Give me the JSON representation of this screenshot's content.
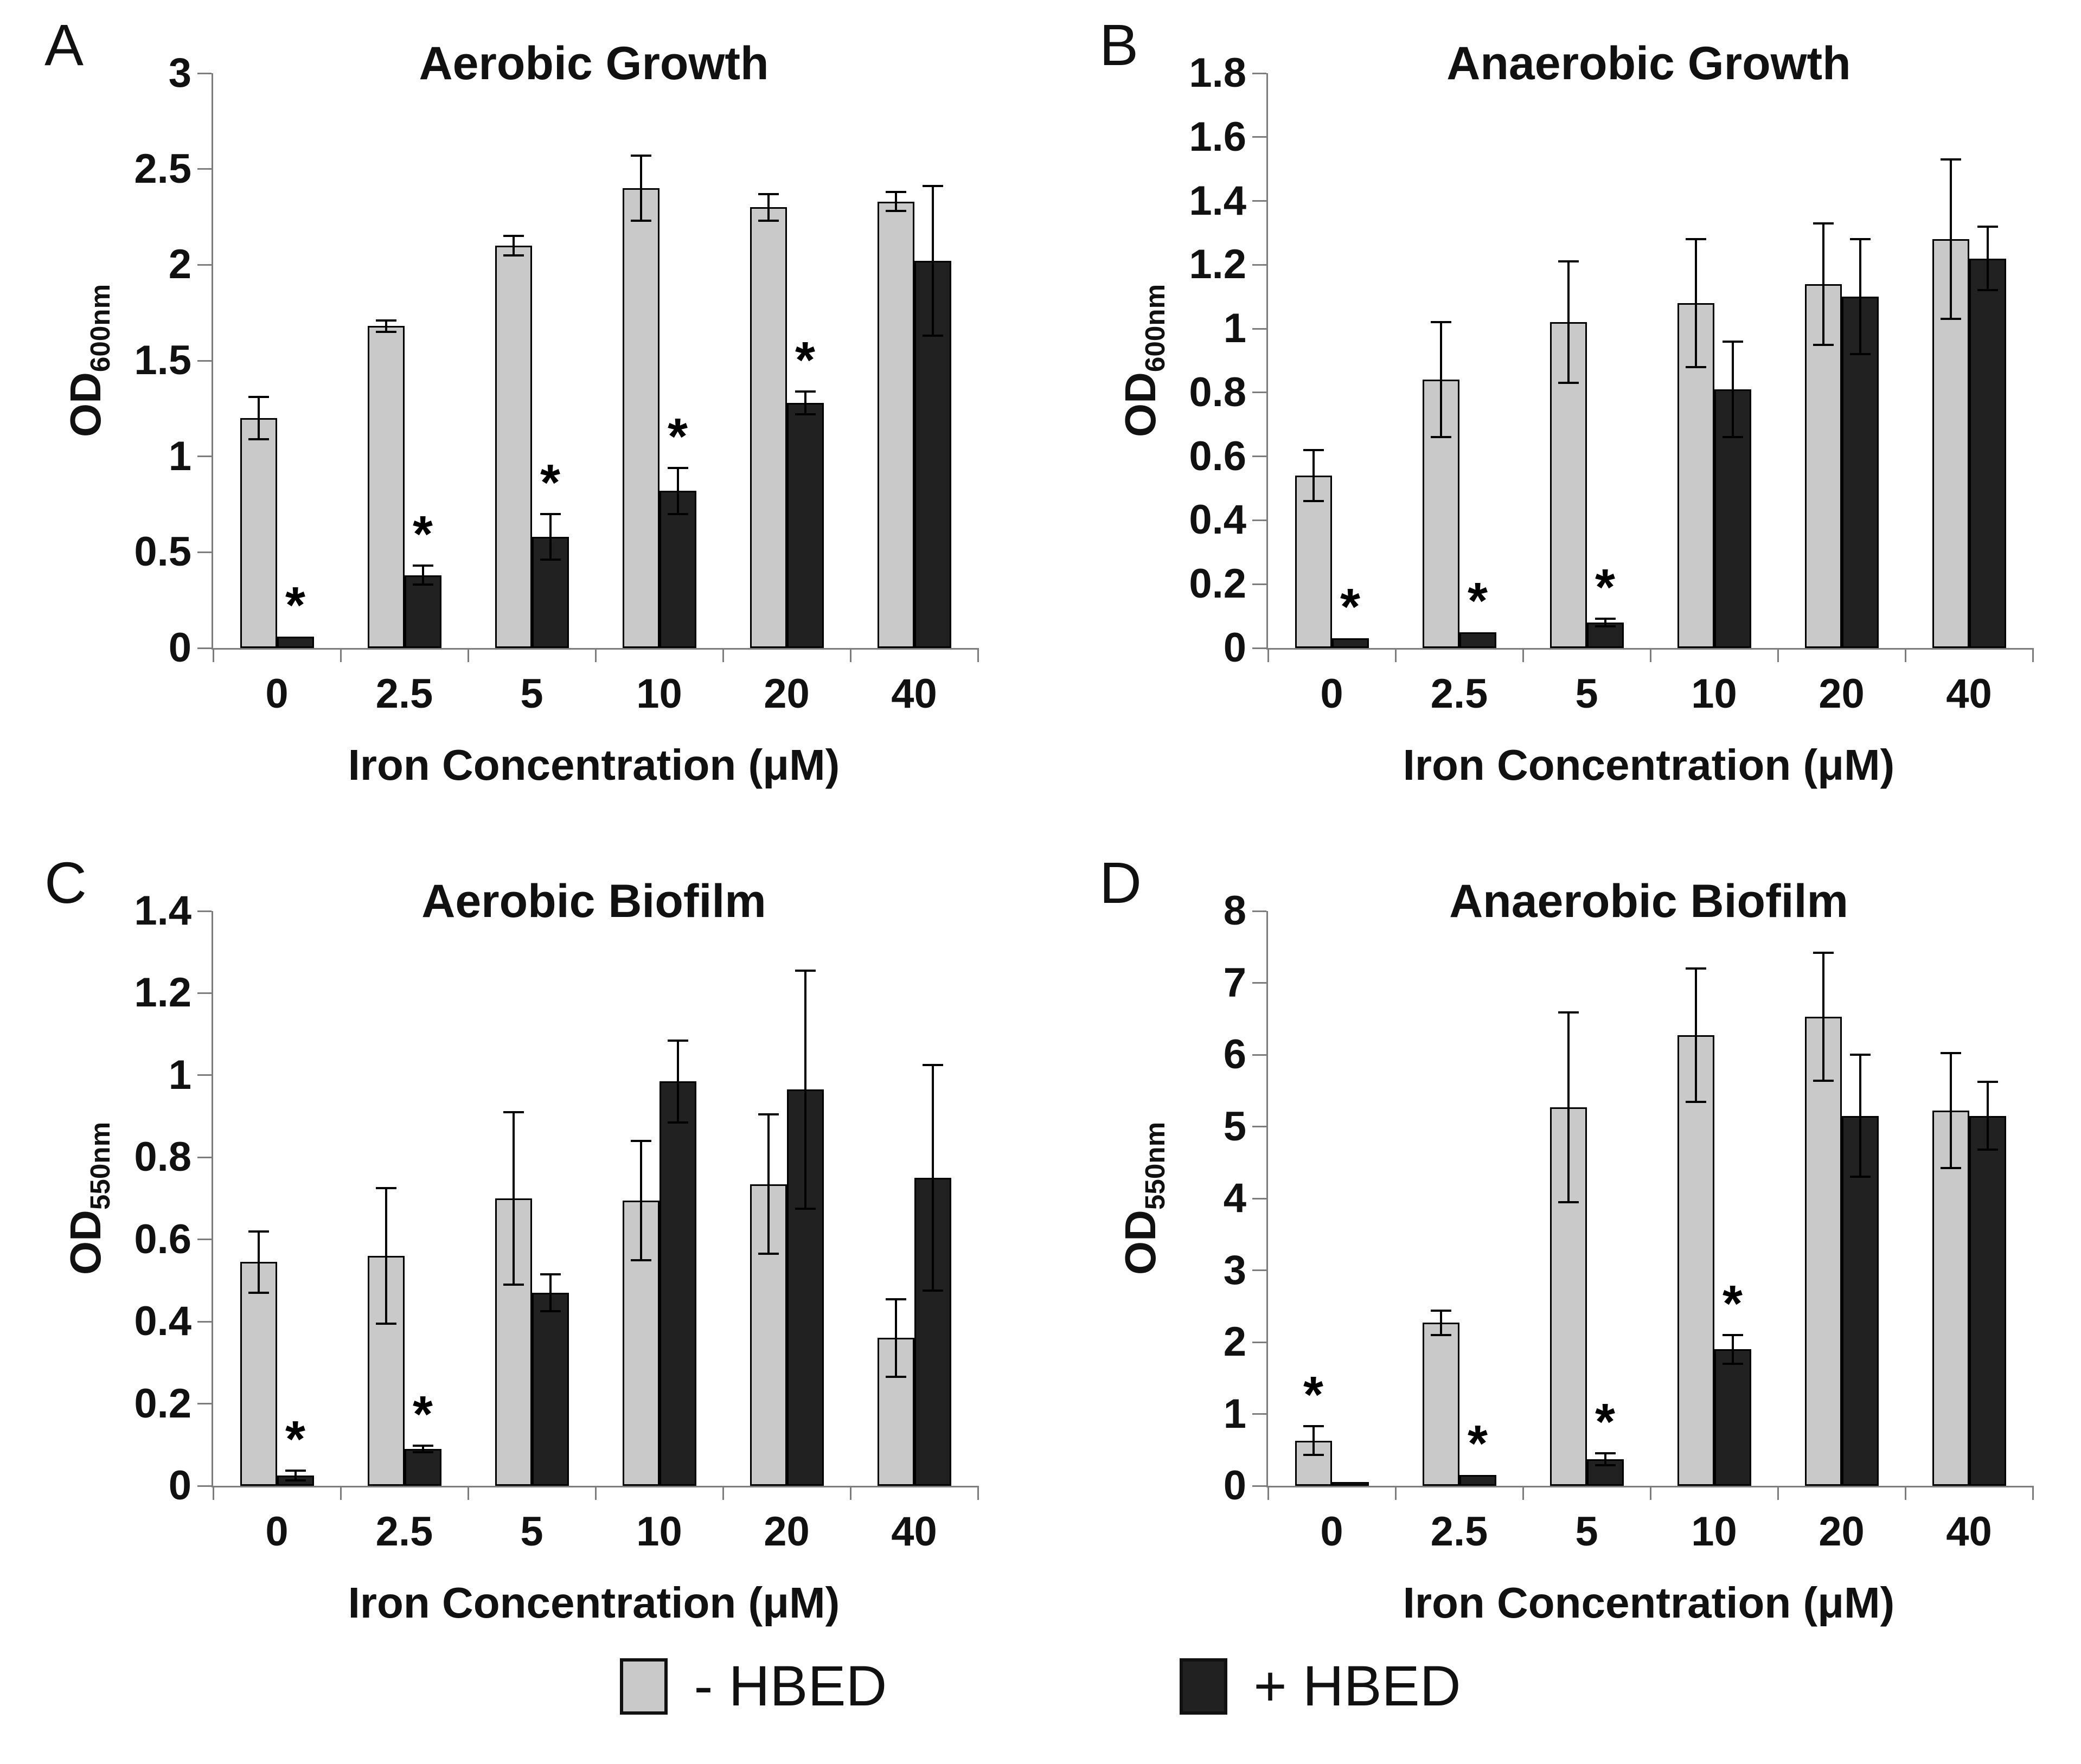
{
  "figure": {
    "background": "#ffffff",
    "colors": {
      "axis": "#7d7d7d",
      "error_bar": "#000000",
      "bar_minus": "#c9c9c9",
      "bar_plus": "#212121"
    },
    "legend": {
      "items": [
        {
          "label": "- HBED",
          "color": "#c9c9c9"
        },
        {
          "label": "+ HBED",
          "color": "#212121"
        }
      ]
    }
  },
  "chart_data": [
    {
      "type": "bar",
      "panel_letter": "A",
      "title": "Aerobic Growth",
      "xlabel": "Iron Concentration (μM)",
      "ylabel_main": "OD",
      "ylabel_sub": "600nm",
      "categories": [
        "0",
        "2.5",
        "5",
        "10",
        "20",
        "40"
      ],
      "ylim": [
        0,
        3
      ],
      "yticks": [
        0,
        0.5,
        1,
        1.5,
        2,
        2.5,
        3
      ],
      "ytick_labels": [
        "0",
        "0.5",
        "1",
        "1.5",
        "2",
        "2.5",
        "3"
      ],
      "grid": false,
      "legend_position": "shared-bottom",
      "series": [
        {
          "name": "- HBED",
          "color": "#c9c9c9",
          "values": [
            1.2,
            1.68,
            2.1,
            2.4,
            2.3,
            2.33
          ],
          "errors": [
            0.11,
            0.03,
            0.05,
            0.17,
            0.07,
            0.05
          ]
        },
        {
          "name": "+ HBED",
          "color": "#212121",
          "values": [
            0.06,
            0.38,
            0.58,
            0.82,
            1.28,
            2.02
          ],
          "errors": [
            0,
            0.05,
            0.12,
            0.12,
            0.06,
            0.39
          ]
        }
      ],
      "significance": [
        [],
        [
          0,
          1,
          2,
          3,
          4
        ]
      ],
      "sig_marker": "*"
    },
    {
      "type": "bar",
      "panel_letter": "B",
      "title": "Anaerobic Growth",
      "xlabel": "Iron Concentration (μM)",
      "ylabel_main": "OD",
      "ylabel_sub": "600nm",
      "categories": [
        "0",
        "2.5",
        "5",
        "10",
        "20",
        "40"
      ],
      "ylim": [
        0,
        1.8
      ],
      "yticks": [
        0,
        0.2,
        0.4,
        0.6,
        0.8,
        1,
        1.2,
        1.4,
        1.6,
        1.8
      ],
      "ytick_labels": [
        "0",
        "0.2",
        "0.4",
        "0.6",
        "0.8",
        "1",
        "1.2",
        "1.4",
        "1.6",
        "1.8"
      ],
      "grid": false,
      "legend_position": "shared-bottom",
      "series": [
        {
          "name": "- HBED",
          "color": "#c9c9c9",
          "values": [
            0.54,
            0.84,
            1.02,
            1.08,
            1.14,
            1.28
          ],
          "errors": [
            0.08,
            0.18,
            0.19,
            0.2,
            0.19,
            0.25
          ]
        },
        {
          "name": "+ HBED",
          "color": "#212121",
          "values": [
            0.03,
            0.05,
            0.08,
            0.81,
            1.1,
            1.22
          ],
          "errors": [
            0,
            0,
            0.012,
            0.15,
            0.18,
            0.1
          ]
        }
      ],
      "significance": [
        [],
        [
          0,
          1,
          2
        ]
      ],
      "sig_marker": "*"
    },
    {
      "type": "bar",
      "panel_letter": "C",
      "title": "Aerobic Biofilm",
      "xlabel": "Iron Concentration (μM)",
      "ylabel_main": "OD",
      "ylabel_sub": "550nm",
      "categories": [
        "0",
        "2.5",
        "5",
        "10",
        "20",
        "40"
      ],
      "ylim": [
        0,
        1.4
      ],
      "yticks": [
        0,
        0.2,
        0.4,
        0.6,
        0.8,
        1,
        1.2,
        1.4
      ],
      "ytick_labels": [
        "0",
        "0.2",
        "0.4",
        "0.6",
        "0.8",
        "1",
        "1.2",
        "1.4"
      ],
      "grid": false,
      "legend_position": "shared-bottom",
      "series": [
        {
          "name": "- HBED",
          "color": "#c9c9c9",
          "values": [
            0.545,
            0.56,
            0.7,
            0.695,
            0.735,
            0.36
          ],
          "errors": [
            0.075,
            0.165,
            0.21,
            0.145,
            0.17,
            0.095
          ]
        },
        {
          "name": "+ HBED",
          "color": "#212121",
          "values": [
            0.025,
            0.09,
            0.47,
            0.985,
            0.965,
            0.75
          ],
          "errors": [
            0.012,
            0.008,
            0.045,
            0.1,
            0.29,
            0.275
          ]
        }
      ],
      "significance": [
        [],
        [
          0,
          1
        ]
      ],
      "sig_marker": "*"
    },
    {
      "type": "bar",
      "panel_letter": "D",
      "title": "Anaerobic Biofilm",
      "xlabel": "Iron Concentration (μM)",
      "ylabel_main": "OD",
      "ylabel_sub": "550nm",
      "categories": [
        "0",
        "2.5",
        "5",
        "10",
        "20",
        "40"
      ],
      "ylim": [
        0,
        8
      ],
      "yticks": [
        0,
        1,
        2,
        3,
        4,
        5,
        6,
        7,
        8
      ],
      "ytick_labels": [
        "0",
        "1",
        "2",
        "3",
        "4",
        "5",
        "6",
        "7",
        "8"
      ],
      "grid": false,
      "legend_position": "shared-bottom",
      "series": [
        {
          "name": "- HBED",
          "color": "#c9c9c9",
          "values": [
            0.63,
            2.27,
            5.27,
            6.27,
            6.53,
            5.22
          ],
          "errors": [
            0.2,
            0.17,
            1.32,
            0.93,
            0.89,
            0.8
          ]
        },
        {
          "name": "+ HBED",
          "color": "#212121",
          "values": [
            0.05,
            0.15,
            0.37,
            1.9,
            5.15,
            5.15
          ],
          "errors": [
            0,
            0,
            0.08,
            0.2,
            0.85,
            0.47
          ]
        }
      ],
      "significance": [
        [
          0
        ],
        [
          1,
          2,
          3
        ]
      ],
      "sig_marker": "*"
    }
  ]
}
